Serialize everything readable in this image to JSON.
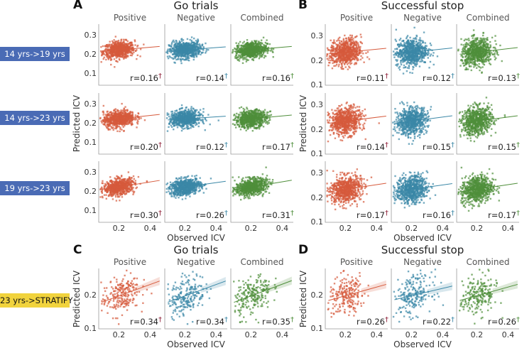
{
  "colors": {
    "Positive": "#d65a3c",
    "Negative": "#3a87a6",
    "Combined": "#4e8e3a",
    "dagger_Positive": "#8e1c36",
    "dagger_Negative": "#3a87a6",
    "dagger_Combined": "#4e8e3a",
    "row_label_blue": "#4a6bb5",
    "row_label_yellow": "#f1d33d"
  },
  "panel_letters": {
    "A": "A",
    "B": "B",
    "C": "C",
    "D": "D"
  },
  "row_labels": [
    "14 yrs->19 yrs",
    "14 yrs->23 yrs",
    "19 yrs->23 yrs",
    "23 yrs->STRATIFY"
  ],
  "chart_data": [
    {
      "type": "scatter",
      "letter": "A",
      "title": "Go trials",
      "xlabel": "Observed ICV",
      "ylabel": "Predicted ICV",
      "columns": [
        "Positive",
        "Negative",
        "Combined"
      ],
      "xticks": [
        "0.2",
        "0.4"
      ],
      "yticks": [
        "0.1",
        "0.2",
        "0.3"
      ],
      "xlim": [
        0.07,
        0.47
      ],
      "ylim": [
        0.04,
        0.36
      ],
      "rows": [
        {
          "label": "14 yrs->19 yrs",
          "r": [
            "r=0.16",
            "r=0.14",
            "r=0.16"
          ]
        },
        {
          "label": "14 yrs->23 yrs",
          "r": [
            "r=0.20",
            "r=0.12",
            "r=0.17"
          ]
        },
        {
          "label": "19 yrs->23 yrs",
          "r": [
            "r=0.30",
            "r=0.26",
            "r=0.31"
          ]
        }
      ],
      "marker": "†"
    },
    {
      "type": "scatter",
      "letter": "B",
      "title": "Successful stop",
      "xlabel": "Observed ICV",
      "ylabel": "Predicted ICV",
      "columns": [
        "Positive",
        "Negative",
        "Combined"
      ],
      "xticks": [
        "0.2",
        "0.4"
      ],
      "yticks": [
        "0.1",
        "0.2",
        "0.3"
      ],
      "xlim": [
        0.07,
        0.47
      ],
      "ylim": [
        0.1,
        0.35
      ],
      "rows": [
        {
          "label": "14 yrs->19 yrs",
          "r": [
            "r=0.11",
            "r=0.12",
            "r=0.13"
          ]
        },
        {
          "label": "14 yrs->23 yrs",
          "r": [
            "r=0.14",
            "r=0.15",
            "r=0.15"
          ]
        },
        {
          "label": "19 yrs->23 yrs",
          "r": [
            "r=0.17",
            "r=0.16",
            "r=0.17"
          ]
        }
      ],
      "marker": "†"
    },
    {
      "type": "scatter",
      "letter": "C",
      "title": "Go trials",
      "xlabel": "Observed ICV",
      "ylabel": "Predicted ICV",
      "columns": [
        "Positive",
        "Negative",
        "Combined"
      ],
      "xticks": [
        "0.2",
        "0.4"
      ],
      "yticks": [
        "0.1",
        "0.2"
      ],
      "xlim": [
        0.07,
        0.47
      ],
      "ylim": [
        0.1,
        0.28
      ],
      "rows": [
        {
          "label": "23 yrs->STRATIFY",
          "r": [
            "r=0.34",
            "r=0.34",
            "r=0.35"
          ]
        }
      ],
      "marker": "†"
    },
    {
      "type": "scatter",
      "letter": "D",
      "title": "Successful stop",
      "xlabel": "Observed ICV",
      "ylabel": "Predicted ICV",
      "columns": [
        "Positive",
        "Negative",
        "Combined"
      ],
      "xticks": [
        "0.2",
        "0.4"
      ],
      "yticks": [
        "0.1",
        "0.2"
      ],
      "xlim": [
        0.07,
        0.47
      ],
      "ylim": [
        0.1,
        0.28
      ],
      "rows": [
        {
          "label": "23 yrs->STRATIFY",
          "r": [
            "r=0.26",
            "r=0.22",
            "r=0.26"
          ]
        }
      ],
      "marker": "†"
    }
  ]
}
